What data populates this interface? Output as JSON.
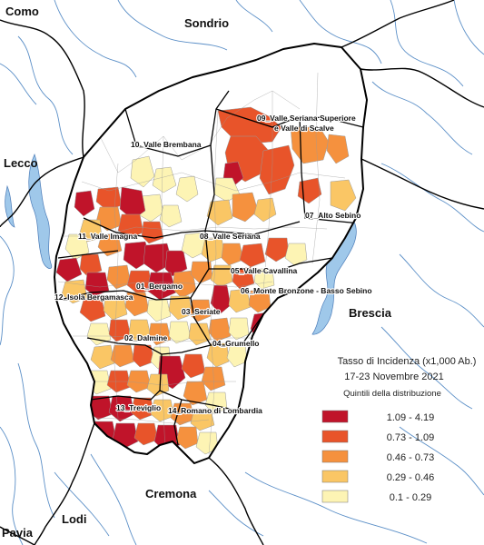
{
  "neighbors": {
    "como": "Como",
    "sondrio": "Sondrio",
    "lecco": "Lecco",
    "brescia": "Brescia",
    "cremona": "Cremona",
    "lodi": "Lodi",
    "pavia": "Pavia"
  },
  "districts": [
    {
      "id": "d01",
      "label": "01_Bergamo"
    },
    {
      "id": "d02",
      "label": "02_Dalmine"
    },
    {
      "id": "d03",
      "label": "03_Seriate"
    },
    {
      "id": "d04",
      "label": "04_Grumello"
    },
    {
      "id": "d05",
      "label": "05_Valle Cavallina"
    },
    {
      "id": "d06",
      "label": "06_Monte Bronzone - Basso Sebino"
    },
    {
      "id": "d07",
      "label": "07_Alto Sebino"
    },
    {
      "id": "d08",
      "label": "08_Valle Seriana"
    },
    {
      "id": "d09",
      "label_line1": "09_Valle Seriana Superiore",
      "label_line2": "e Valle di Scalve"
    },
    {
      "id": "d10",
      "label": "10_Valle Brembana"
    },
    {
      "id": "d11",
      "label": "11_Valle Imagna"
    },
    {
      "id": "d12",
      "label": "12_Isola Bergamasca"
    },
    {
      "id": "d13",
      "label": "13_Treviglio"
    },
    {
      "id": "d14",
      "label": "14_Romano di Lombardia"
    }
  ],
  "legend": {
    "title": "Tasso di Incidenza (x1,000 Ab.)",
    "period": "17-23 Novembre 2021",
    "subtitle": "Quintili della distribuzione",
    "classes": [
      {
        "range": "1.09 - 4.19",
        "color": "#c0142a"
      },
      {
        "range": "0.73 - 1.09",
        "color": "#e8542a"
      },
      {
        "range": "0.46 - 0.73",
        "color": "#f5913e"
      },
      {
        "range": "0.29 - 0.46",
        "color": "#fac665"
      },
      {
        "range": "0.1 - 0.29",
        "color": "#fdf4b4"
      }
    ]
  },
  "colors": {
    "river": "#5b8fc7",
    "lake": "#9fc8ea",
    "boundary": "#000000",
    "municipality": "#9a9a9a"
  }
}
